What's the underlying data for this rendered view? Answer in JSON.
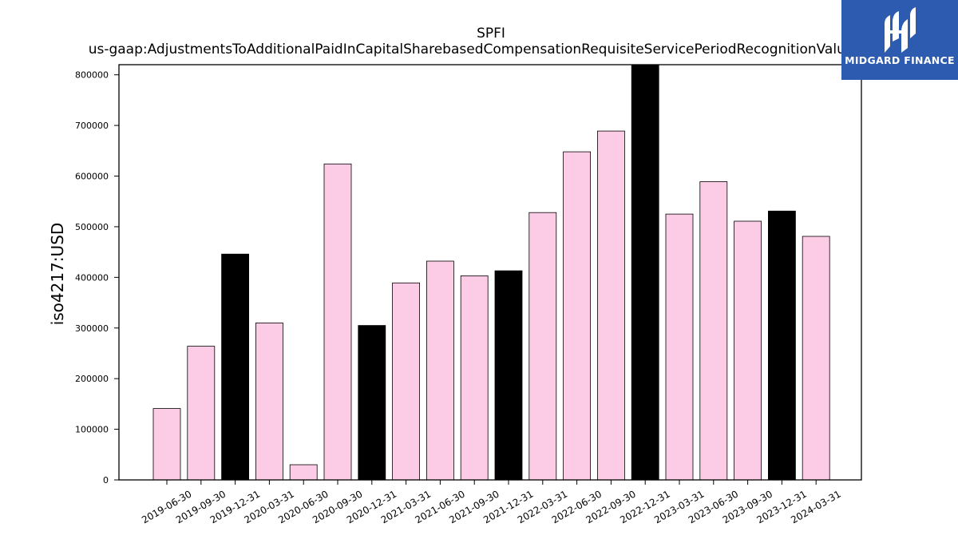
{
  "chart_data": {
    "type": "bar",
    "title_line1": "SPFI",
    "title_line2": "us-gaap:AdjustmentsToAdditionalPaidInCapitalSharebasedCompensationRequisiteServicePeriodRecognitionValue",
    "xlabel": "",
    "ylabel": "iso4217:USD",
    "ylim": [
      0,
      820000
    ],
    "yticks": [
      0,
      100000,
      200000,
      300000,
      400000,
      500000,
      600000,
      700000,
      800000
    ],
    "ytick_labels": [
      "0",
      "100000",
      "200000",
      "300000",
      "400000",
      "500000",
      "600000",
      "700000",
      "800000"
    ],
    "categories": [
      "2019-06-30",
      "2019-09-30",
      "2019-12-31",
      "2020-03-31",
      "2020-06-30",
      "2020-09-30",
      "2020-12-31",
      "2021-03-31",
      "2021-06-30",
      "2021-09-30",
      "2021-12-31",
      "2022-03-31",
      "2022-06-30",
      "2022-09-30",
      "2022-12-31",
      "2023-03-31",
      "2023-06-30",
      "2023-09-30",
      "2023-12-31",
      "2024-03-31"
    ],
    "values": [
      141000,
      264000,
      446000,
      310000,
      30000,
      624000,
      305000,
      389000,
      432000,
      403000,
      413000,
      528000,
      648000,
      689000,
      820000,
      525000,
      589000,
      511000,
      531000,
      481000
    ],
    "highlight": [
      false,
      false,
      true,
      false,
      false,
      false,
      true,
      false,
      false,
      false,
      true,
      false,
      false,
      false,
      true,
      false,
      false,
      false,
      true,
      false
    ],
    "grid": false,
    "legend": "none",
    "colors": {
      "bar": "#fccce6",
      "highlight": "#000000",
      "edge": "#000000"
    }
  },
  "logo": {
    "text": "MIDGARD FINANCE",
    "background": "#2d5bb0"
  }
}
